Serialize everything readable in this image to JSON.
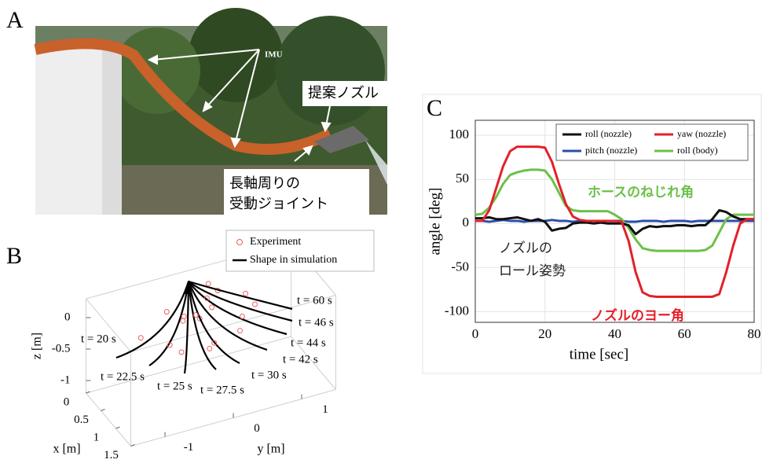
{
  "panel_labels": [
    "A",
    "B",
    "C"
  ],
  "photo": {
    "annotations": [
      "IMU",
      "提案ノズル",
      "長軸周りの",
      "受動ジョイント"
    ]
  },
  "chart_data": [
    {
      "type": "3d-line",
      "series": [
        {
          "name": "Experiment",
          "color": "#e8615f"
        },
        {
          "name": "Shape in simulation",
          "color": "#000000"
        }
      ],
      "xlabel": "x [m]",
      "ylabel": "y [m]",
      "zlabel": "z [m]",
      "xlim": [
        0,
        1.5
      ],
      "ylim": [
        -1.5,
        1.5
      ],
      "zlim": [
        -1.2,
        0.3
      ],
      "xticks": [
        0,
        0.5,
        1,
        1.5
      ],
      "yticks": [
        -1,
        0,
        1
      ],
      "zticks": [
        0,
        -0.5,
        -1
      ],
      "curve_labels": [
        "t = 20 s",
        "t = 22.5 s",
        "t = 25 s",
        "t = 27.5 s",
        "t = 30 s",
        "t = 42 s",
        "t = 44 s",
        "t = 46 s",
        "t = 60 s"
      ]
    },
    {
      "type": "line",
      "xlabel": "time [sec]",
      "ylabel": "angle [deg]",
      "xlim": [
        0,
        80
      ],
      "ylim": [
        -112,
        117
      ],
      "xticks": [
        0,
        20,
        40,
        60,
        80
      ],
      "yticks": [
        100,
        50,
        0,
        -50,
        -100
      ],
      "grid": true,
      "legend": "upper right",
      "x": [
        0,
        2,
        4,
        6,
        8,
        10,
        12,
        14,
        16,
        18,
        20,
        22,
        24,
        26,
        28,
        30,
        32,
        34,
        36,
        38,
        40,
        42,
        44,
        46,
        48,
        50,
        52,
        54,
        56,
        58,
        60,
        62,
        64,
        66,
        68,
        70,
        72,
        74,
        76,
        78,
        80
      ],
      "series": [
        {
          "name": "roll (nozzle)",
          "color": "#111111",
          "values": [
            6,
            6,
            7,
            5,
            5,
            6,
            7,
            5,
            3,
            5,
            2,
            -8,
            -6,
            -5,
            0,
            1,
            1,
            0,
            1,
            0,
            0,
            0,
            -2,
            -12,
            -6,
            -3,
            -4,
            -3,
            -3,
            -2,
            -2,
            -3,
            -2,
            -2,
            5,
            15,
            13,
            8,
            5,
            5,
            5
          ]
        },
        {
          "name": "yaw (nozzle)",
          "color": "#e4202a",
          "values": [
            3,
            3,
            15,
            40,
            65,
            82,
            87,
            87,
            87,
            87,
            86,
            70,
            45,
            22,
            8,
            4,
            3,
            3,
            3,
            3,
            3,
            2,
            -20,
            -55,
            -78,
            -82,
            -83,
            -83,
            -83,
            -83,
            -83,
            -83,
            -83,
            -83,
            -83,
            -80,
            -55,
            -25,
            0,
            5,
            5
          ]
        },
        {
          "name": "pitch (nozzle)",
          "color": "#2a4fa8",
          "values": [
            3,
            3,
            2,
            3,
            4,
            3,
            3,
            2,
            3,
            3,
            3,
            4,
            3,
            3,
            2,
            3,
            3,
            3,
            3,
            3,
            3,
            3,
            2,
            2,
            3,
            3,
            3,
            2,
            3,
            3,
            3,
            2,
            3,
            3,
            3,
            3,
            3,
            3,
            3,
            3,
            3
          ]
        },
        {
          "name": "roll (body)",
          "color": "#6cc04a",
          "values": [
            10,
            11,
            18,
            30,
            45,
            55,
            58,
            60,
            61,
            61,
            60,
            50,
            35,
            20,
            15,
            14,
            14,
            14,
            14,
            14,
            10,
            5,
            -5,
            -18,
            -28,
            -30,
            -31,
            -31,
            -31,
            -31,
            -31,
            -31,
            -31,
            -30,
            -25,
            -10,
            5,
            10,
            10,
            10,
            10
          ]
        }
      ],
      "annotations": [
        {
          "text": "ホースのねじれ角",
          "color": "#6cc04a"
        },
        {
          "text": "ノズルの",
          "color": "#222222"
        },
        {
          "text": "ロール姿勢",
          "color": "#222222"
        },
        {
          "text": "ノズルのヨー角",
          "color": "#e4202a"
        }
      ]
    }
  ]
}
